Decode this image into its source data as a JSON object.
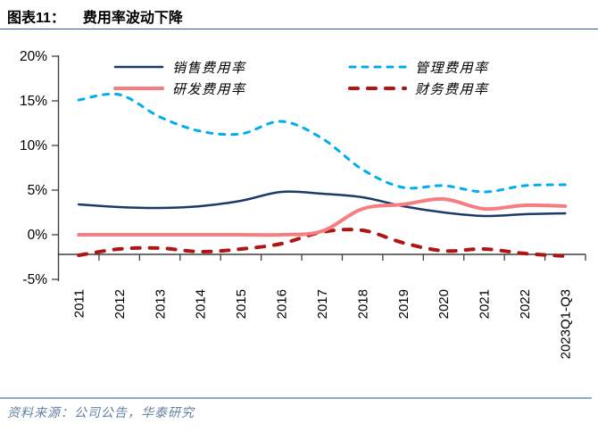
{
  "header": {
    "label": "图表11：",
    "title": "费用率波动下降"
  },
  "source": {
    "text": "资料来源：公司公告，华泰研究"
  },
  "colors": {
    "title_rule": "#2F5597",
    "source_rule": "#8EA9C4",
    "source_text": "#64809F",
    "axis": "#3F3F3F",
    "tick_label": "#000000"
  },
  "chart_data": {
    "type": "line",
    "title": "费用率波动下降",
    "categories": [
      "2011",
      "2012",
      "2013",
      "2014",
      "2015",
      "2016",
      "2017",
      "2018",
      "2019",
      "2020",
      "2021",
      "2022",
      "2023Q1-Q3"
    ],
    "series": [
      {
        "id": "sales-expense-ratio",
        "name": "销售费用率",
        "color": "#1B3A66",
        "style": "solid",
        "width": 2.5,
        "values": [
          3.4,
          3.1,
          3.0,
          3.2,
          3.8,
          4.8,
          4.6,
          4.2,
          3.2,
          2.5,
          2.1,
          2.3,
          2.4
        ]
      },
      {
        "id": "rnd-expense-ratio",
        "name": "研发费用率",
        "color": "#F77E80",
        "style": "solid",
        "width": 4,
        "values": [
          0.0,
          0.0,
          0.0,
          0.0,
          0.0,
          0.0,
          0.4,
          2.9,
          3.4,
          4.0,
          2.9,
          3.3,
          3.2
        ]
      },
      {
        "id": "admin-expense-ratio",
        "name": "管理费用率",
        "color": "#00AEEF",
        "style": "dashed",
        "width": 3,
        "dash": "6 8",
        "values": [
          15.1,
          15.7,
          13.2,
          11.6,
          11.3,
          12.7,
          10.8,
          7.3,
          5.3,
          5.5,
          4.8,
          5.5,
          5.6
        ]
      },
      {
        "id": "finance-expense-ratio",
        "name": "财务费用率",
        "color": "#AE1513",
        "style": "dashed",
        "width": 4,
        "dash": "9 11",
        "values": [
          -2.3,
          -1.6,
          -1.5,
          -1.9,
          -1.6,
          -1.0,
          0.3,
          0.5,
          -0.9,
          -1.8,
          -1.6,
          -2.1,
          -2.4
        ]
      }
    ],
    "yticks": [
      "20%",
      "15%",
      "10%",
      "5%",
      "0%",
      "-5%"
    ],
    "ytick_values": [
      20,
      15,
      10,
      5,
      0,
      -5
    ],
    "ylim": [
      -5,
      20
    ],
    "x_axis_crossing": -2.2,
    "grid": false,
    "legend_position": "top"
  }
}
